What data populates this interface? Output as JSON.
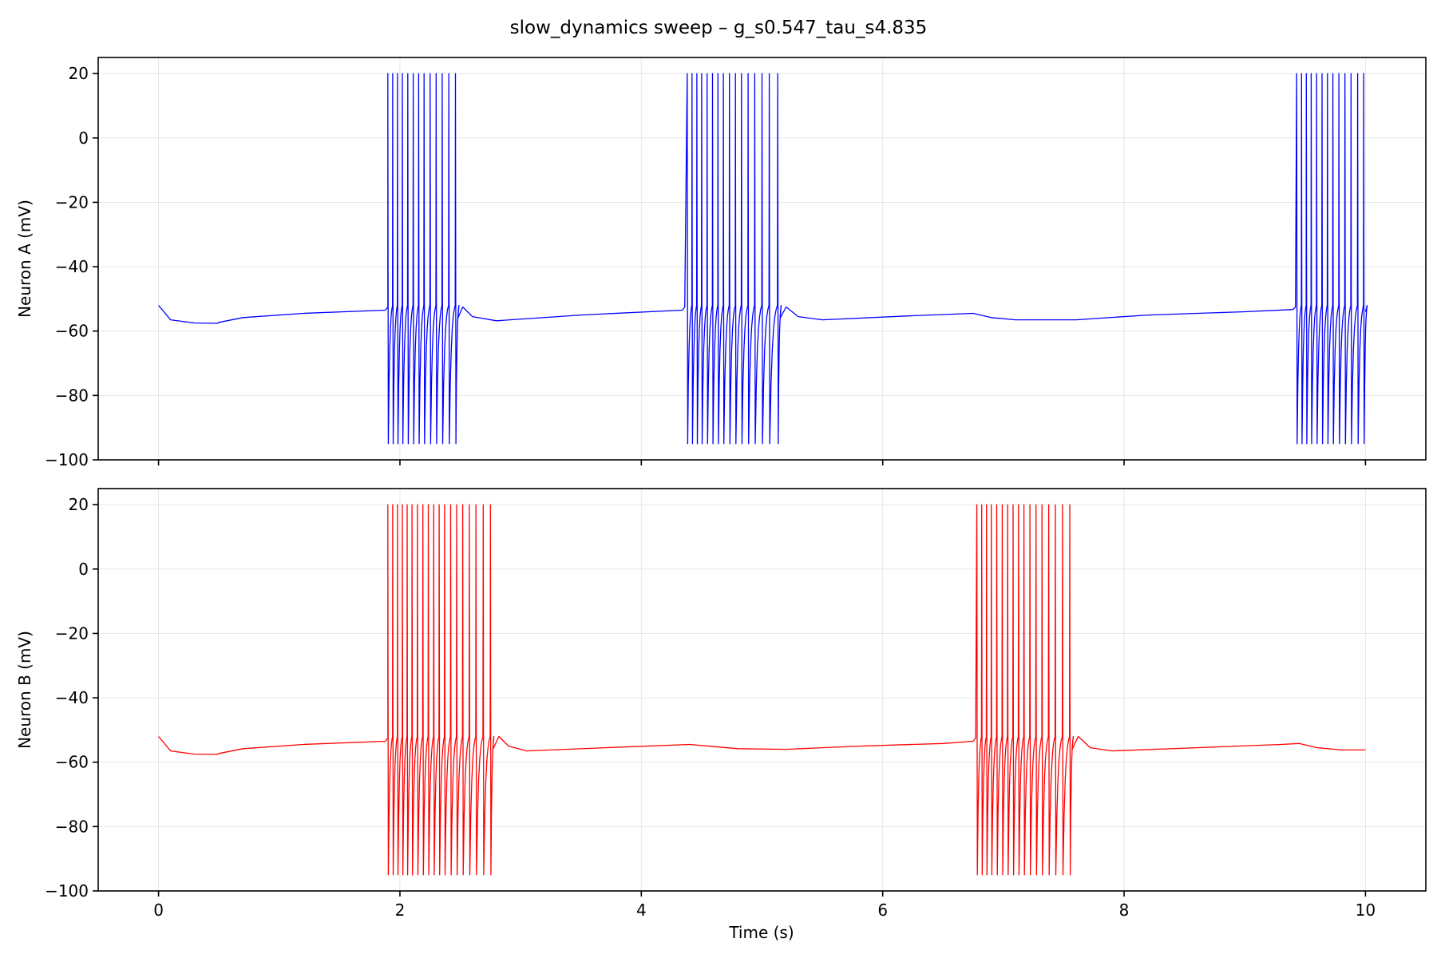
{
  "chart_data": {
    "type": "line",
    "title": "slow_dynamics sweep – g_s0.547_tau_s4.835",
    "xlabel": "Time (s)",
    "xlim": [
      -0.5,
      10.5
    ],
    "xticks": [
      0,
      2,
      4,
      6,
      8,
      10
    ],
    "tick_label_format": "minus-sign",
    "grid": true,
    "shared_x": true,
    "panels": [
      {
        "ylabel": "Neuron A (mV)",
        "ylim": [
          -100,
          25
        ],
        "yticks": [
          -100,
          -80,
          -60,
          -40,
          -20,
          0,
          20
        ],
        "color": "#0000ff",
        "spike_peak": 20,
        "spike_trough": -95,
        "baseline": [
          [
            0,
            -52
          ],
          [
            0.1,
            -56.5
          ],
          [
            0.3,
            -57.5
          ],
          [
            0.49,
            -57.6
          ],
          [
            0.5,
            -57.3
          ],
          [
            0.7,
            -55.8
          ],
          [
            1.2,
            -54.5
          ],
          [
            1.88,
            -53.5
          ],
          [
            1.9,
            -52.5
          ]
        ],
        "bursts": [
          {
            "spikes": [
              1.9,
              1.94,
              1.98,
              2.02,
              2.065,
              2.11,
              2.155,
              2.2,
              2.25,
              2.3,
              2.35,
              2.405,
              2.46
            ],
            "recovery": [
              [
                2.48,
                -56
              ],
              [
                2.52,
                -52.5
              ],
              [
                2.6,
                -55.5
              ],
              [
                2.8,
                -56.8
              ],
              [
                3.5,
                -55
              ],
              [
                4.34,
                -53.5
              ],
              [
                4.36,
                -52.5
              ]
            ]
          },
          {
            "spikes": [
              4.38,
              4.42,
              4.46,
              4.5,
              4.545,
              4.59,
              4.635,
              4.68,
              4.73,
              4.78,
              4.83,
              4.885,
              4.94,
              5.0,
              5.06,
              5.13
            ],
            "recovery": [
              [
                5.15,
                -56
              ],
              [
                5.2,
                -52.5
              ],
              [
                5.3,
                -55.5
              ],
              [
                5.5,
                -56.5
              ],
              [
                6.2,
                -55.3
              ],
              [
                6.75,
                -54.5
              ],
              [
                6.9,
                -55.8
              ],
              [
                7.1,
                -56.5
              ],
              [
                7.6,
                -56.5
              ],
              [
                8.2,
                -55
              ],
              [
                9.0,
                -54
              ],
              [
                9.4,
                -53.3
              ],
              [
                9.42,
                -52.5
              ]
            ]
          },
          {
            "spikes": [
              9.43,
              9.47,
              9.51,
              9.55,
              9.595,
              9.64,
              9.685,
              9.73,
              9.78,
              9.83,
              9.88,
              9.935,
              9.985
            ],
            "recovery": [
              [
                10.0,
                -54
              ]
            ]
          }
        ]
      },
      {
        "ylabel": "Neuron B (mV)",
        "ylim": [
          -100,
          25
        ],
        "yticks": [
          -100,
          -80,
          -60,
          -40,
          -20,
          0,
          20
        ],
        "color": "#ff0000",
        "spike_peak": 20,
        "spike_trough": -95,
        "baseline": [
          [
            0,
            -52
          ],
          [
            0.1,
            -56.5
          ],
          [
            0.3,
            -57.5
          ],
          [
            0.49,
            -57.6
          ],
          [
            0.5,
            -57.3
          ],
          [
            0.7,
            -55.8
          ],
          [
            1.2,
            -54.5
          ],
          [
            1.88,
            -53.5
          ],
          [
            1.9,
            -52.5
          ]
        ],
        "bursts": [
          {
            "spikes": [
              1.9,
              1.94,
              1.98,
              2.02,
              2.06,
              2.1,
              2.145,
              2.19,
              2.235,
              2.28,
              2.325,
              2.37,
              2.42,
              2.47,
              2.52,
              2.575,
              2.63,
              2.69,
              2.75
            ],
            "recovery": [
              [
                2.77,
                -56
              ],
              [
                2.82,
                -52
              ],
              [
                2.9,
                -55
              ],
              [
                3.05,
                -56.5
              ],
              [
                3.7,
                -55.5
              ],
              [
                4.4,
                -54.5
              ],
              [
                4.8,
                -55.8
              ],
              [
                5.2,
                -56
              ],
              [
                5.8,
                -55
              ],
              [
                6.5,
                -54.2
              ],
              [
                6.75,
                -53.5
              ],
              [
                6.77,
                -52.5
              ]
            ]
          },
          {
            "spikes": [
              6.78,
              6.82,
              6.86,
              6.9,
              6.945,
              6.99,
              7.035,
              7.08,
              7.125,
              7.17,
              7.22,
              7.27,
              7.32,
              7.375,
              7.43,
              7.49,
              7.55
            ],
            "recovery": [
              [
                7.57,
                -56
              ],
              [
                7.62,
                -52
              ],
              [
                7.72,
                -55.5
              ],
              [
                7.9,
                -56.5
              ],
              [
                8.6,
                -55.5
              ],
              [
                9.3,
                -54.5
              ],
              [
                9.45,
                -54.2
              ],
              [
                9.6,
                -55.5
              ],
              [
                9.8,
                -56.2
              ],
              [
                10.0,
                -56.2
              ]
            ]
          }
        ]
      }
    ]
  }
}
